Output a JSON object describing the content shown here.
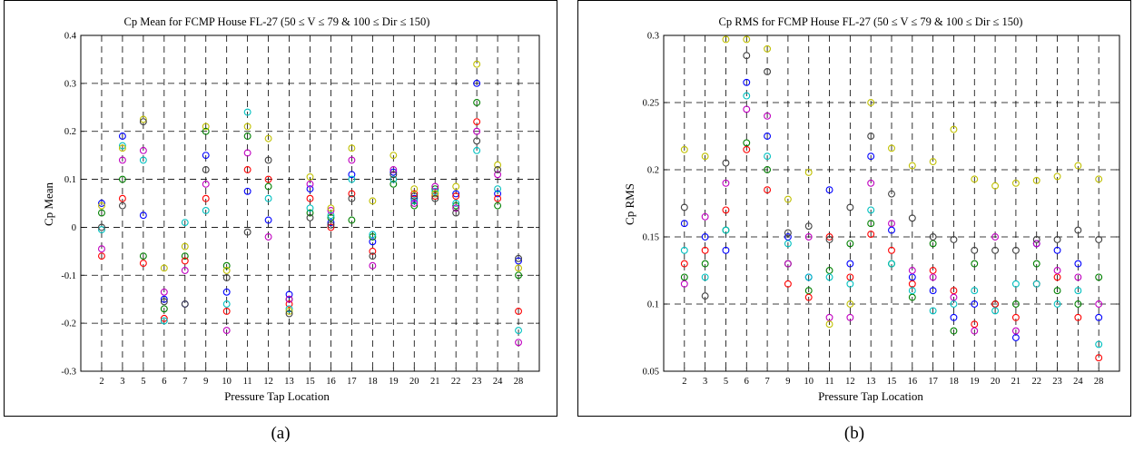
{
  "chart_data": [
    {
      "type": "scatter",
      "title": "Cp Mean for FCMP House FL-27 (50 ≤ V ≤ 79 & 100 ≤ Dir ≤ 150)",
      "xlabel": "Pressure Tap Location",
      "ylabel": "Cp Mean",
      "categories": [
        "2",
        "3",
        "5",
        "6",
        "7",
        "9",
        "10",
        "11",
        "12",
        "13",
        "15",
        "16",
        "17",
        "18",
        "19",
        "20",
        "21",
        "22",
        "23",
        "24",
        "28"
      ],
      "ylim": [
        -0.3,
        0.4
      ],
      "yticks": [
        "-0.3",
        "-0.2",
        "-0.1",
        "0",
        "0.1",
        "0.2",
        "0.3",
        "0.4"
      ],
      "grid": true,
      "marker": "circle",
      "caption": "(a)",
      "series": [
        {
          "color": "#0000ff",
          "values": [
            0.05,
            0.19,
            0.025,
            -0.15,
            -0.16,
            0.15,
            -0.135,
            0.075,
            0.015,
            -0.14,
            0.08,
            0.01,
            0.11,
            -0.03,
            0.115,
            0.06,
            0.07,
            0.07,
            0.3,
            0.07,
            -0.07
          ]
        },
        {
          "color": "#008000",
          "values": [
            0.03,
            0.1,
            -0.06,
            -0.17,
            -0.06,
            0.2,
            -0.08,
            0.19,
            0.085,
            -0.15,
            0.03,
            0.02,
            0.015,
            -0.02,
            0.09,
            0.045,
            0.08,
            0.045,
            0.26,
            0.045,
            -0.1
          ]
        },
        {
          "color": "#ff0000",
          "values": [
            -0.06,
            0.06,
            -0.075,
            -0.19,
            -0.07,
            0.06,
            -0.175,
            0.12,
            0.1,
            -0.16,
            0.06,
            0.0,
            0.07,
            -0.05,
            0.1,
            0.07,
            0.065,
            0.065,
            0.22,
            0.06,
            -0.175
          ]
        },
        {
          "color": "#00c0c0",
          "values": [
            -0.005,
            0.17,
            0.14,
            -0.195,
            0.01,
            0.035,
            -0.16,
            0.24,
            0.06,
            -0.17,
            0.04,
            0.025,
            0.1,
            -0.015,
            0.1,
            0.055,
            0.075,
            0.05,
            0.16,
            0.08,
            -0.215
          ]
        },
        {
          "color": "#c000c0",
          "values": [
            -0.045,
            0.14,
            0.16,
            -0.135,
            -0.09,
            0.09,
            -0.215,
            0.155,
            -0.02,
            -0.15,
            0.09,
            0.035,
            0.14,
            -0.08,
            0.12,
            0.05,
            0.085,
            0.04,
            0.2,
            0.11,
            -0.24
          ]
        },
        {
          "color": "#c0c000",
          "values": [
            0.045,
            0.165,
            0.225,
            -0.085,
            -0.04,
            0.21,
            -0.09,
            0.21,
            0.185,
            -0.175,
            0.105,
            0.04,
            0.165,
            0.055,
            0.15,
            0.08,
            0.07,
            0.085,
            0.34,
            0.13,
            -0.085
          ]
        },
        {
          "color": "#404040",
          "values": [
            0.0,
            0.045,
            0.22,
            -0.155,
            -0.16,
            0.12,
            -0.105,
            -0.01,
            0.14,
            -0.18,
            0.02,
            0.005,
            0.06,
            -0.06,
            0.11,
            0.065,
            0.06,
            0.03,
            0.18,
            0.12,
            -0.065
          ]
        }
      ]
    },
    {
      "type": "scatter",
      "title": "Cp RMS for FCMP House FL-27 (50 ≤ V ≤ 79 & 100 ≤ Dir ≤ 150)",
      "xlabel": "Pressure Tap Location",
      "ylabel": "Cp RMS",
      "categories": [
        "2",
        "3",
        "5",
        "6",
        "7",
        "9",
        "10",
        "11",
        "12",
        "13",
        "15",
        "16",
        "17",
        "18",
        "19",
        "20",
        "21",
        "22",
        "23",
        "24",
        "28"
      ],
      "ylim": [
        0.05,
        0.3
      ],
      "yticks": [
        "0.05",
        "0.1",
        "0.15",
        "0.2",
        "0.25",
        "0.3"
      ],
      "grid": true,
      "marker": "circle",
      "caption": "(b)",
      "series": [
        {
          "color": "#0000ff",
          "values": [
            0.16,
            0.15,
            0.14,
            0.265,
            0.225,
            0.15,
            0.12,
            0.185,
            0.13,
            0.21,
            0.155,
            0.12,
            0.11,
            0.09,
            0.1,
            0.1,
            0.075,
            0.145,
            0.14,
            0.13,
            0.09
          ]
        },
        {
          "color": "#008000",
          "values": [
            0.12,
            0.13,
            0.155,
            0.22,
            0.2,
            0.13,
            0.11,
            0.125,
            0.145,
            0.16,
            0.13,
            0.105,
            0.145,
            0.08,
            0.13,
            0.1,
            0.1,
            0.13,
            0.11,
            0.1,
            0.12
          ]
        },
        {
          "color": "#ff0000",
          "values": [
            0.13,
            0.14,
            0.17,
            0.215,
            0.185,
            0.115,
            0.105,
            0.15,
            0.12,
            0.152,
            0.14,
            0.115,
            0.125,
            0.11,
            0.085,
            0.1,
            0.09,
            0.115,
            0.12,
            0.09,
            0.06
          ]
        },
        {
          "color": "#00c0c0",
          "values": [
            0.14,
            0.12,
            0.155,
            0.255,
            0.21,
            0.145,
            0.12,
            0.12,
            0.115,
            0.17,
            0.13,
            0.11,
            0.095,
            0.1,
            0.11,
            0.095,
            0.115,
            0.115,
            0.1,
            0.11,
            0.07
          ]
        },
        {
          "color": "#c000c0",
          "values": [
            0.115,
            0.165,
            0.19,
            0.245,
            0.24,
            0.13,
            0.15,
            0.09,
            0.09,
            0.19,
            0.16,
            0.125,
            0.12,
            0.105,
            0.08,
            0.15,
            0.08,
            0.145,
            0.125,
            0.12,
            0.1
          ]
        },
        {
          "color": "#c0c000",
          "values": [
            0.215,
            0.21,
            0.297,
            0.297,
            0.29,
            0.178,
            0.198,
            0.085,
            0.1,
            0.25,
            0.216,
            0.203,
            0.206,
            0.23,
            0.193,
            0.188,
            0.19,
            0.192,
            0.195,
            0.203,
            0.193
          ]
        },
        {
          "color": "#404040",
          "values": [
            0.172,
            0.106,
            0.205,
            0.285,
            0.273,
            0.153,
            0.158,
            0.148,
            0.172,
            0.225,
            0.182,
            0.164,
            0.15,
            0.148,
            0.14,
            0.14,
            0.14,
            0.148,
            0.148,
            0.155,
            0.148
          ]
        }
      ]
    }
  ]
}
